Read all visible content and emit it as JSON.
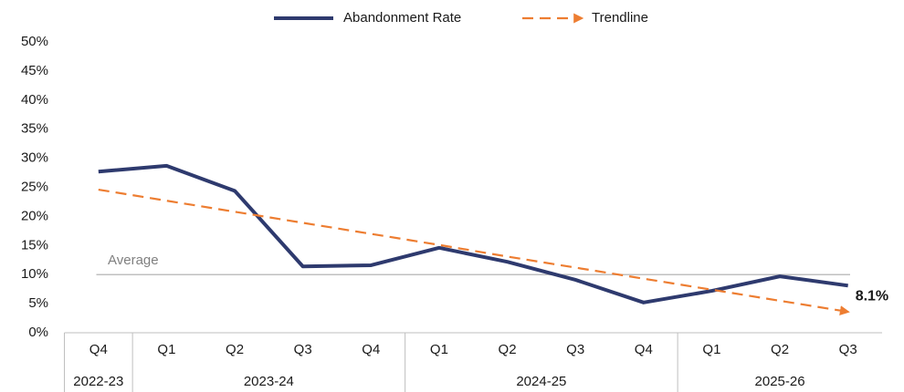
{
  "chart_data": {
    "type": "line",
    "categories": [
      "Q4",
      "Q1",
      "Q2",
      "Q3",
      "Q4",
      "Q1",
      "Q2",
      "Q3",
      "Q4",
      "Q1",
      "Q2",
      "Q3"
    ],
    "groups": [
      {
        "label": "2022-23",
        "categories": 1
      },
      {
        "label": "2023-24",
        "categories": 4
      },
      {
        "label": "2024-25",
        "categories": 4
      },
      {
        "label": "2025-26",
        "categories": 3
      }
    ],
    "series": [
      {
        "name": "Abandonment Rate",
        "color": "#2e3a6e",
        "values": [
          27.7,
          28.7,
          24.4,
          11.4,
          11.6,
          14.6,
          12.2,
          9.1,
          5.2,
          7.2,
          9.7,
          8.1
        ],
        "value_labels": [
          null,
          null,
          null,
          null,
          null,
          null,
          null,
          null,
          null,
          null,
          null,
          "8.1%"
        ]
      },
      {
        "name": "Trendline",
        "color": "#ed7d31",
        "dashed": true,
        "arrow": true,
        "values": [
          24.6,
          22.7,
          20.8,
          18.9,
          17.0,
          15.1,
          13.1,
          11.2,
          9.3,
          7.4,
          5.5,
          3.6
        ]
      }
    ],
    "average": {
      "label": "Average",
      "value": 10.0,
      "color": "#bfbfbf"
    },
    "ylim": [
      0,
      50
    ],
    "yticks": [
      {
        "value": 0,
        "label": "0%"
      },
      {
        "value": 5,
        "label": "5%"
      },
      {
        "value": 10,
        "label": "10%"
      },
      {
        "value": 15,
        "label": "15%"
      },
      {
        "value": 20,
        "label": "20%"
      },
      {
        "value": 25,
        "label": "25%"
      },
      {
        "value": 30,
        "label": "30%"
      },
      {
        "value": 35,
        "label": "35%"
      },
      {
        "value": 40,
        "label": "40%"
      },
      {
        "value": 45,
        "label": "45%"
      },
      {
        "value": 50,
        "label": "50%"
      }
    ],
    "legend": "top"
  }
}
